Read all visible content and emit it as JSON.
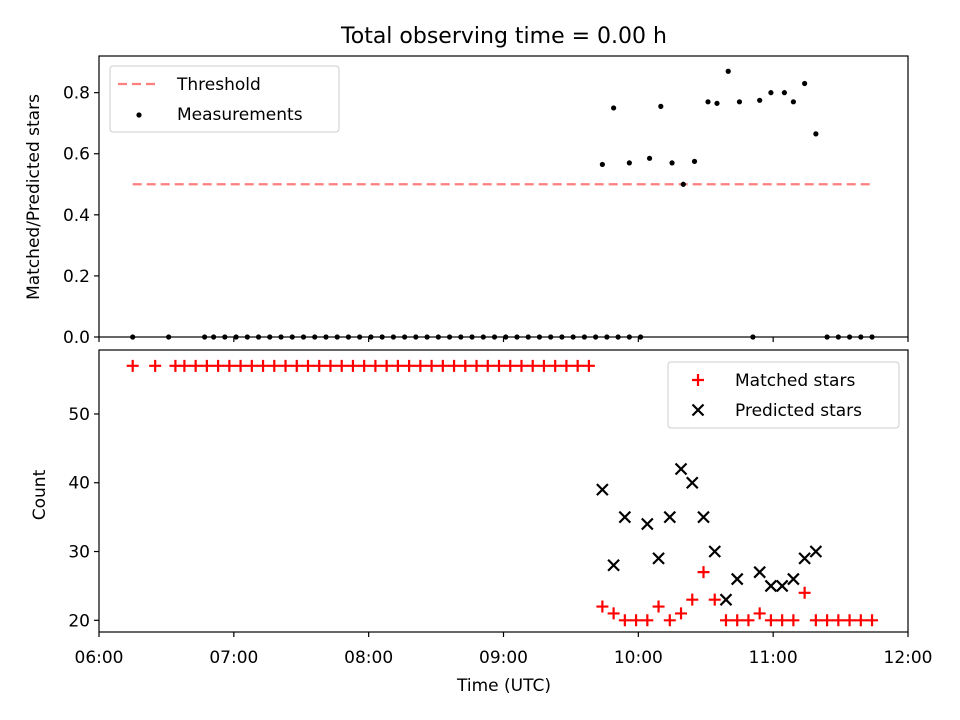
{
  "title": "Total observing time = 0.00 h",
  "chart_data": [
    {
      "type": "scatter",
      "panel": "top",
      "ylabel": "Matched/Predicted stars",
      "ylim": [
        0,
        0.92
      ],
      "yticks": [
        0.0,
        0.2,
        0.4,
        0.6,
        0.8
      ],
      "ytick_labels": [
        "0.0",
        "0.2",
        "0.4",
        "0.6",
        "0.8"
      ],
      "xlim": [
        "06:00",
        "12:00"
      ],
      "legend_position": "top-left",
      "threshold": {
        "name": "Threshold",
        "value": 0.5,
        "x_start": "06:15",
        "x_end": "11:45",
        "color": "#ff7f7f",
        "style": "dashed"
      },
      "series": [
        {
          "name": "Measurements",
          "color": "#000000",
          "marker": "dot",
          "points": [
            [
              "06:15",
              0.0
            ],
            [
              "06:31",
              0.0
            ],
            [
              "06:47",
              0.0
            ],
            [
              "06:51",
              0.0
            ],
            [
              "06:56",
              0.0
            ],
            [
              "07:01",
              0.0
            ],
            [
              "07:06",
              0.0
            ],
            [
              "07:11",
              0.0
            ],
            [
              "07:16",
              0.0
            ],
            [
              "07:21",
              0.0
            ],
            [
              "07:26",
              0.0
            ],
            [
              "07:31",
              0.0
            ],
            [
              "07:36",
              0.0
            ],
            [
              "07:41",
              0.0
            ],
            [
              "07:46",
              0.0
            ],
            [
              "07:51",
              0.0
            ],
            [
              "07:56",
              0.0
            ],
            [
              "08:01",
              0.0
            ],
            [
              "08:06",
              0.0
            ],
            [
              "08:11",
              0.0
            ],
            [
              "08:16",
              0.0
            ],
            [
              "08:21",
              0.0
            ],
            [
              "08:26",
              0.0
            ],
            [
              "08:31",
              0.0
            ],
            [
              "08:36",
              0.0
            ],
            [
              "08:41",
              0.0
            ],
            [
              "08:46",
              0.0
            ],
            [
              "08:51",
              0.0
            ],
            [
              "08:56",
              0.0
            ],
            [
              "09:01",
              0.0
            ],
            [
              "09:06",
              0.0
            ],
            [
              "09:11",
              0.0
            ],
            [
              "09:16",
              0.0
            ],
            [
              "09:21",
              0.0
            ],
            [
              "09:26",
              0.0
            ],
            [
              "09:31",
              0.0
            ],
            [
              "09:36",
              0.0
            ],
            [
              "09:41",
              0.0
            ],
            [
              "09:46",
              0.0
            ],
            [
              "09:51",
              0.0
            ],
            [
              "09:56",
              0.0
            ],
            [
              "10:01",
              0.0
            ],
            [
              "09:44",
              0.565
            ],
            [
              "09:49",
              0.75
            ],
            [
              "09:56",
              0.57
            ],
            [
              "10:05",
              0.585
            ],
            [
              "10:10",
              0.755
            ],
            [
              "10:15",
              0.57
            ],
            [
              "10:20",
              0.5
            ],
            [
              "10:25",
              0.575
            ],
            [
              "10:31",
              0.77
            ],
            [
              "10:35",
              0.765
            ],
            [
              "10:40",
              0.87
            ],
            [
              "10:45",
              0.77
            ],
            [
              "10:54",
              0.775
            ],
            [
              "10:59",
              0.8
            ],
            [
              "11:05",
              0.8
            ],
            [
              "11:09",
              0.77
            ],
            [
              "11:14",
              0.83
            ],
            [
              "11:19",
              0.665
            ],
            [
              "10:51",
              0.0
            ],
            [
              "11:24",
              0.0
            ],
            [
              "11:29",
              0.0
            ],
            [
              "11:34",
              0.0
            ],
            [
              "11:39",
              0.0
            ],
            [
              "11:44",
              0.0
            ]
          ]
        }
      ]
    },
    {
      "type": "scatter",
      "panel": "bottom",
      "xlabel": "Time (UTC)",
      "ylabel": "Count",
      "ylim": [
        18.3,
        59.3
      ],
      "yticks": [
        20,
        30,
        40,
        50
      ],
      "ytick_labels": [
        "20",
        "30",
        "40",
        "50"
      ],
      "xlim": [
        "06:00",
        "12:00"
      ],
      "xticks": [
        "06:00",
        "07:00",
        "08:00",
        "09:00",
        "10:00",
        "11:00",
        "12:00"
      ],
      "xtick_labels": [
        "06:00",
        "07:00",
        "08:00",
        "09:00",
        "10:00",
        "11:00",
        "12:00"
      ],
      "legend_position": "top-right",
      "series": [
        {
          "name": "Matched stars",
          "color": "#ff0000",
          "marker": "plus",
          "points": [
            [
              "06:15",
              57
            ],
            [
              "06:25",
              57
            ],
            [
              "06:34",
              57
            ],
            [
              "06:38",
              57
            ],
            [
              "06:43",
              57
            ],
            [
              "06:48",
              57
            ],
            [
              "06:53",
              57
            ],
            [
              "06:58",
              57
            ],
            [
              "07:03",
              57
            ],
            [
              "07:08",
              57
            ],
            [
              "07:13",
              57
            ],
            [
              "07:18",
              57
            ],
            [
              "07:23",
              57
            ],
            [
              "07:28",
              57
            ],
            [
              "07:33",
              57
            ],
            [
              "07:38",
              57
            ],
            [
              "07:43",
              57
            ],
            [
              "07:48",
              57
            ],
            [
              "07:53",
              57
            ],
            [
              "07:58",
              57
            ],
            [
              "08:03",
              57
            ],
            [
              "08:08",
              57
            ],
            [
              "08:13",
              57
            ],
            [
              "08:18",
              57
            ],
            [
              "08:23",
              57
            ],
            [
              "08:28",
              57
            ],
            [
              "08:33",
              57
            ],
            [
              "08:38",
              57
            ],
            [
              "08:43",
              57
            ],
            [
              "08:48",
              57
            ],
            [
              "08:53",
              57
            ],
            [
              "08:58",
              57
            ],
            [
              "09:03",
              57
            ],
            [
              "09:08",
              57
            ],
            [
              "09:13",
              57
            ],
            [
              "09:18",
              57
            ],
            [
              "09:23",
              57
            ],
            [
              "09:28",
              57
            ],
            [
              "09:33",
              57
            ],
            [
              "09:38",
              57
            ],
            [
              "09:44",
              22
            ],
            [
              "09:49",
              21
            ],
            [
              "09:54",
              20
            ],
            [
              "09:59",
              20
            ],
            [
              "10:04",
              20
            ],
            [
              "10:09",
              22
            ],
            [
              "10:14",
              20
            ],
            [
              "10:19",
              21
            ],
            [
              "10:24",
              23
            ],
            [
              "10:29",
              27
            ],
            [
              "10:34",
              23
            ],
            [
              "10:39",
              20
            ],
            [
              "10:44",
              20
            ],
            [
              "10:49",
              20
            ],
            [
              "10:54",
              21
            ],
            [
              "10:59",
              20
            ],
            [
              "11:04",
              20
            ],
            [
              "11:09",
              20
            ],
            [
              "11:14",
              24
            ],
            [
              "11:19",
              20
            ],
            [
              "11:24",
              20
            ],
            [
              "11:29",
              20
            ],
            [
              "11:34",
              20
            ],
            [
              "11:39",
              20
            ],
            [
              "11:44",
              20
            ]
          ]
        },
        {
          "name": "Predicted stars",
          "color": "#000000",
          "marker": "x",
          "points": [
            [
              "09:44",
              39
            ],
            [
              "09:49",
              28
            ],
            [
              "09:54",
              35
            ],
            [
              "10:04",
              34
            ],
            [
              "10:09",
              29
            ],
            [
              "10:14",
              35
            ],
            [
              "10:19",
              42
            ],
            [
              "10:24",
              40
            ],
            [
              "10:29",
              35
            ],
            [
              "10:34",
              30
            ],
            [
              "10:39",
              23
            ],
            [
              "10:44",
              26
            ],
            [
              "10:54",
              27
            ],
            [
              "10:59",
              25
            ],
            [
              "11:04",
              25
            ],
            [
              "11:09",
              26
            ],
            [
              "11:14",
              29
            ],
            [
              "11:19",
              30
            ]
          ]
        }
      ]
    }
  ]
}
